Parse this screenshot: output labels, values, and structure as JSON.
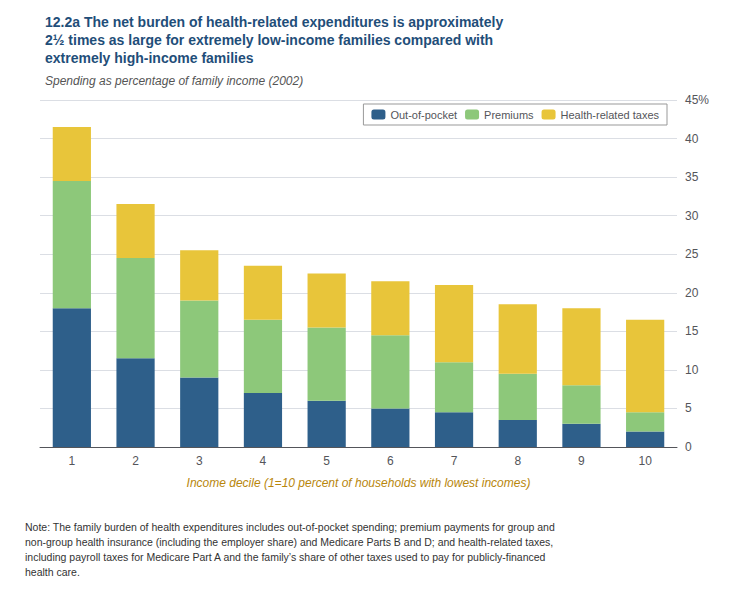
{
  "chart_data": {
    "type": "bar",
    "title": "12.2a The net burden of health-related expenditures is approximately\n2½ times as large for extremely low-income families compared with\nextremely high-income families",
    "subtitle": "Spending as percentage of family income (2002)",
    "xlabel": "Income decile (1=10 percent of households with lowest incomes)",
    "note": "Note: The family burden of health expenditures includes out-of-pocket spending; premium payments for group and\nnon-group health insurance (including the employer share) and Medicare Parts B and D; and health-related taxes,\nincluding payroll taxes for Medicare Part A and the family’s share of other taxes used to pay for publicly-financed\nhealth care.",
    "categories": [
      "1",
      "2",
      "3",
      "4",
      "5",
      "6",
      "7",
      "8",
      "9",
      "10"
    ],
    "series": [
      {
        "name": "Out-of-pocket",
        "color": "#2e5f8a",
        "values": [
          18.0,
          11.5,
          9.0,
          7.0,
          6.0,
          5.0,
          4.5,
          3.5,
          3.0,
          2.0
        ]
      },
      {
        "name": "Premiums",
        "color": "#8dc87a",
        "values": [
          16.5,
          13.0,
          10.0,
          9.5,
          9.5,
          9.5,
          6.5,
          6.0,
          5.0,
          2.5
        ]
      },
      {
        "name": "Health-related taxes",
        "color": "#e8c53a",
        "values": [
          7.0,
          7.0,
          6.5,
          7.0,
          7.0,
          7.0,
          10.0,
          9.0,
          10.0,
          12.0
        ]
      }
    ],
    "stacked": true,
    "ylim": [
      0,
      45
    ],
    "yticks": [
      0,
      5,
      10,
      15,
      20,
      25,
      30,
      35,
      40,
      {
        "value": 45,
        "label": "45%"
      }
    ],
    "grid": true,
    "legend": "upper right"
  }
}
